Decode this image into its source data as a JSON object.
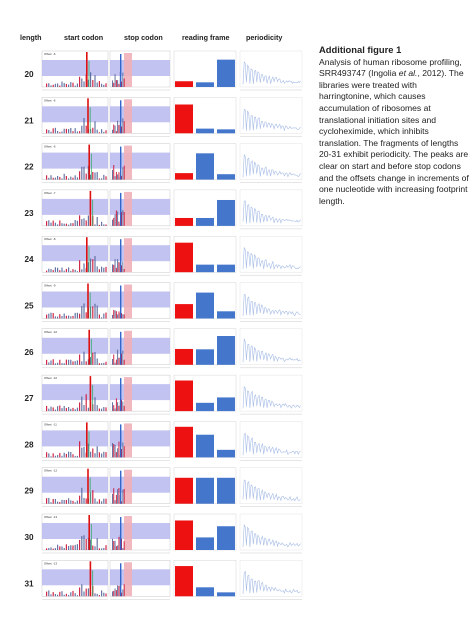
{
  "headers": {
    "length": "length",
    "start_codon": "start codon",
    "stop_codon": "stop codon",
    "reading_frame": "reading frame",
    "periodicity": "periodicity"
  },
  "caption": {
    "title": "Additional figure 1",
    "part1": "Analysis of human ribosome profiling, SRR493747 (Ingolia ",
    "etal": "et al.",
    "part2": ", 2012). The libraries were treated with harringtonine, which causes accumulation of ribosomes at translational initiation sites and cycloheximide, which inhibits translation. The fragments of lengths 20-31 exhibit periodicity. The peaks are clear on start and before stop codons and the offsets change in increments of one nucleotide with increasing footprint length."
  },
  "colors": {
    "frame0": "#ee1111",
    "frame1": "#4477cc",
    "frame2": "#4477cc",
    "region_box": "#b8b8f0",
    "stop_box": "#f0b0b8",
    "periodicity_line": "#a8bde6"
  },
  "rows": [
    {
      "length": "20",
      "frames": [
        0.16,
        0.13,
        0.76
      ],
      "offset_label": "Offset: -6"
    },
    {
      "length": "21",
      "frames": [
        0.8,
        0.13,
        0.11
      ],
      "offset_label": "Offset: -6"
    },
    {
      "length": "22",
      "frames": [
        0.18,
        0.73,
        0.15
      ],
      "offset_label": "Offset: -6"
    },
    {
      "length": "23",
      "frames": [
        0.22,
        0.22,
        0.72
      ],
      "offset_label": "Offset: -7"
    },
    {
      "length": "24",
      "frames": [
        0.82,
        0.21,
        0.21
      ],
      "offset_label": "Offset: -8"
    },
    {
      "length": "25",
      "frames": [
        0.4,
        0.72,
        0.2
      ],
      "offset_label": "Offset: -9"
    },
    {
      "length": "26",
      "frames": [
        0.44,
        0.43,
        0.8
      ],
      "offset_label": "Offset: -10"
    },
    {
      "length": "27",
      "frames": [
        0.85,
        0.23,
        0.38
      ],
      "offset_label": "Offset: -10"
    },
    {
      "length": "28",
      "frames": [
        0.85,
        0.63,
        0.21
      ],
      "offset_label": "Offset: -11"
    },
    {
      "length": "29",
      "frames": [
        0.72,
        0.72,
        0.72
      ],
      "offset_label": "Offset: -12"
    },
    {
      "length": "30",
      "frames": [
        0.82,
        0.35,
        0.66
      ],
      "offset_label": "Offset: -13"
    },
    {
      "length": "31",
      "frames": [
        0.84,
        0.25,
        0.11
      ],
      "offset_label": "Offset: -13"
    }
  ],
  "chart_data": [
    {
      "type": "bar",
      "title": "reading frame",
      "categories": [
        "0",
        "1",
        "2"
      ],
      "series": [
        {
          "values": [
            0.16,
            0.13,
            0.76
          ]
        },
        {
          "values": [
            0.8,
            0.13,
            0.11
          ]
        },
        {
          "values": [
            0.18,
            0.73,
            0.15
          ]
        },
        {
          "values": [
            0.22,
            0.22,
            0.72
          ]
        },
        {
          "values": [
            0.82,
            0.21,
            0.21
          ]
        },
        {
          "values": [
            0.4,
            0.72,
            0.2
          ]
        },
        {
          "values": [
            0.44,
            0.43,
            0.8
          ]
        },
        {
          "values": [
            0.85,
            0.23,
            0.38
          ]
        },
        {
          "values": [
            0.85,
            0.63,
            0.21
          ]
        },
        {
          "values": [
            0.72,
            0.72,
            0.72
          ]
        },
        {
          "values": [
            0.82,
            0.35,
            0.66
          ]
        },
        {
          "values": [
            0.84,
            0.25,
            0.11
          ]
        }
      ]
    }
  ]
}
